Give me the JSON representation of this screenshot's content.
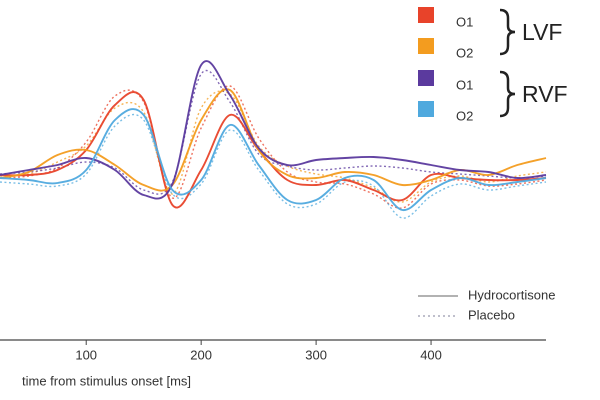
{
  "chart_data": {
    "type": "line",
    "x_label": "time from stimulus onset [ms]",
    "xlim": [
      25,
      500
    ],
    "xticks": [
      100,
      200,
      300,
      400
    ],
    "ylim": [
      -8,
      8
    ],
    "x": [
      25,
      50,
      75,
      100,
      125,
      150,
      175,
      200,
      225,
      250,
      275,
      300,
      325,
      350,
      375,
      400,
      425,
      450,
      475,
      500
    ],
    "series": [
      {
        "name": "O1",
        "group": "LVF",
        "condition": "Hydrocortisone",
        "color": "#e8432a",
        "dashed": false,
        "values": [
          0.15,
          0.15,
          0.4,
          1.4,
          3.65,
          3.9,
          -1.35,
          0.4,
          3.15,
          1.4,
          -0.1,
          -0.35,
          -0.1,
          -0.6,
          -1.1,
          0.15,
          0,
          -0.1,
          -0.1,
          0
        ]
      },
      {
        "name": "O2",
        "group": "LVF",
        "condition": "Hydrocortisone",
        "color": "#f39c1f",
        "dashed": false,
        "values": [
          0,
          0.3,
          1.15,
          1.4,
          0.65,
          -0.35,
          -0.35,
          2.9,
          4.4,
          1.4,
          0.15,
          0,
          0.3,
          0.15,
          -0.35,
          -0.1,
          0.4,
          0.15,
          0.65,
          1.0
        ]
      },
      {
        "name": "O1",
        "group": "RVF",
        "condition": "Hydrocortisone",
        "color": "#5b3a9e",
        "dashed": false,
        "values": [
          0.15,
          0.4,
          0.65,
          1.0,
          0.4,
          -0.85,
          -0.3,
          5.65,
          4.15,
          1.5,
          0.65,
          0.9,
          1.0,
          1.05,
          0.9,
          0.65,
          0.4,
          0.3,
          0,
          0.15
        ]
      },
      {
        "name": "O2",
        "group": "RVF",
        "condition": "Hydrocortisone",
        "color": "#4fa9de",
        "dashed": false,
        "values": [
          0,
          -0.1,
          -0.25,
          0.4,
          2.9,
          3.15,
          -0.6,
          -0.1,
          2.65,
          0.65,
          -1.1,
          -1.1,
          0,
          -0.1,
          -1.6,
          -0.6,
          0,
          -0.35,
          -0.2,
          0
        ]
      },
      {
        "name": "O1",
        "group": "LVF",
        "condition": "Placebo",
        "color": "#e8432a",
        "dashed": true,
        "values": [
          0,
          0.1,
          0.5,
          1.8,
          4.1,
          3.8,
          -1.0,
          2.5,
          4.6,
          2.0,
          0.3,
          -0.2,
          -0.3,
          -0.8,
          -1.5,
          -0.3,
          -0.1,
          -0.4,
          -0.3,
          -0.1
        ]
      },
      {
        "name": "O2",
        "group": "LVF",
        "condition": "Placebo",
        "color": "#f39c1f",
        "dashed": true,
        "values": [
          0.1,
          0.2,
          0.8,
          1.6,
          3.5,
          3.3,
          -0.8,
          3.5,
          4.2,
          1.6,
          0.6,
          0.2,
          0.0,
          -0.5,
          -1.2,
          -0.2,
          0.1,
          -0.2,
          0.1,
          0.3
        ]
      },
      {
        "name": "O1",
        "group": "RVF",
        "condition": "Placebo",
        "color": "#5b3a9e",
        "dashed": true,
        "values": [
          0.2,
          0.3,
          0.5,
          0.8,
          0.5,
          -0.6,
          -0.2,
          5.2,
          3.8,
          1.2,
          0.6,
          0.4,
          0.5,
          0.6,
          0.5,
          0.3,
          0.2,
          0.1,
          0.0,
          0.1
        ]
      },
      {
        "name": "O2",
        "group": "RVF",
        "condition": "Placebo",
        "color": "#4fa9de",
        "dashed": true,
        "values": [
          -0.2,
          -0.3,
          -0.4,
          0.2,
          2.6,
          2.9,
          -0.8,
          -0.3,
          2.4,
          0.4,
          -1.3,
          -1.3,
          -0.2,
          -0.4,
          -2.0,
          -0.9,
          -0.3,
          -0.6,
          -0.4,
          -0.2
        ]
      }
    ]
  }
}
